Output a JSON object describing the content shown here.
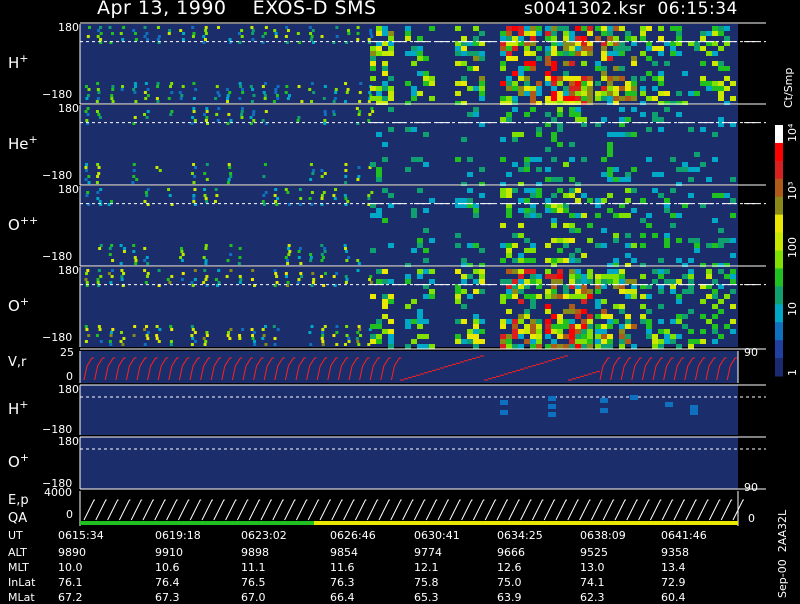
{
  "header": {
    "title": "Apr 13, 1990    EXOS-D SMS",
    "file": "s0041302.ksr",
    "time": "06:15:34"
  },
  "panels": [
    {
      "label": "H",
      "sup": "+",
      "top_tick": "180",
      "bottom_tick": "−180"
    },
    {
      "label": "He",
      "sup": "+",
      "top_tick": "180",
      "bottom_tick": "−180"
    },
    {
      "label": "O",
      "sup": "++",
      "top_tick": "180",
      "bottom_tick": "−180"
    },
    {
      "label": "O",
      "sup": "+",
      "top_tick": "180",
      "bottom_tick": "−180"
    }
  ],
  "vr_panel": {
    "label": "V,r",
    "y_top": "25",
    "y_bottom": "0",
    "right_tick": "90"
  },
  "lower_panels": [
    {
      "label": "H",
      "sup": "+",
      "top_tick": "180",
      "bottom_tick": "−180"
    },
    {
      "label": "O",
      "sup": "+",
      "top_tick": "180",
      "bottom_tick": "−180",
      "right_tick": "90"
    }
  ],
  "ep_panel": {
    "label1": "E,p",
    "label2": "QA",
    "y_top": "4000",
    "y_bottom": "0",
    "right_tick": "0"
  },
  "colorbar": {
    "unit": "Ct/Smp",
    "labels": [
      "10⁴",
      "10³",
      "100",
      "10",
      "1"
    ],
    "colors": [
      "#ffffff",
      "#ff0000",
      "#d92020",
      "#b05a1a",
      "#8a8a18",
      "#e8e800",
      "#c8e800",
      "#80e000",
      "#20c020",
      "#10a070",
      "#00a8c8",
      "#1070c0",
      "#2040a0",
      "#1a2a70"
    ]
  },
  "footer": {
    "row_labels": [
      "UT",
      "ALT",
      "MLT",
      "InLat",
      "MLat"
    ],
    "columns": [
      {
        "UT": "0615:34",
        "ALT": "9890",
        "MLT": "10.0",
        "InLat": "76.1",
        "MLat": "67.2"
      },
      {
        "UT": "0619:18",
        "ALT": "9910",
        "MLT": "10.6",
        "InLat": "76.4",
        "MLat": "67.3"
      },
      {
        "UT": "0623:02",
        "ALT": "9898",
        "MLT": "11.1",
        "InLat": "76.5",
        "MLat": "67.0"
      },
      {
        "UT": "0626:46",
        "ALT": "9854",
        "MLT": "11.6",
        "InLat": "76.3",
        "MLat": "66.4"
      },
      {
        "UT": "0630:41",
        "ALT": "9774",
        "MLT": "12.1",
        "InLat": "75.8",
        "MLat": "65.3"
      },
      {
        "UT": "0634:25",
        "ALT": "9666",
        "MLT": "12.6",
        "InLat": "75.0",
        "MLat": "63.9"
      },
      {
        "UT": "0638:09",
        "ALT": "9525",
        "MLT": "13.0",
        "InLat": "74.1",
        "MLat": "62.3"
      },
      {
        "UT": "0641:46",
        "ALT": "9358",
        "MLT": "13.4",
        "InLat": "72.9",
        "MLat": "60.4"
      }
    ],
    "version": "Sep-00  2AA32L"
  },
  "chart_data": {
    "type": "heatmap",
    "x_ticks": [
      "0615:34",
      "0619:18",
      "0623:02",
      "0626:46",
      "0630:41",
      "0634:25",
      "0638:09",
      "0641:46"
    ],
    "color_scale": "log",
    "color_range": [
      1,
      10000
    ],
    "panels": [
      "H+",
      "He+",
      "O++",
      "O+",
      "V,r",
      "H+",
      "O+",
      "E,p / QA"
    ]
  }
}
